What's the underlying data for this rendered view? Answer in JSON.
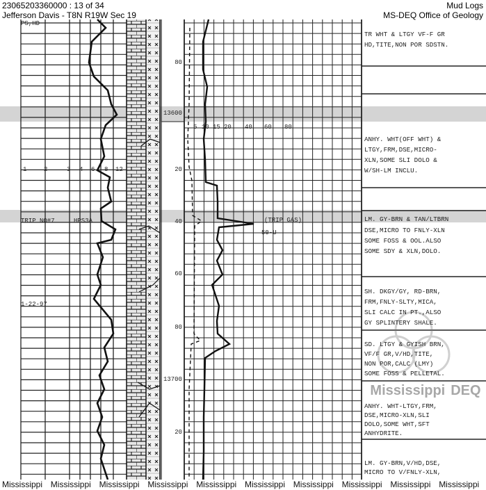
{
  "header": {
    "well_id": "23065203360000 : 13 of 34",
    "location": "Jefferson Davis - T8N R19W Sec 19",
    "doc_type": "Mud Logs",
    "agency": "MS-DEQ Office of Geology"
  },
  "left_track": {
    "top_label": "PS,HD",
    "scale_labels": [
      "1",
      "2",
      "3",
      "4",
      "6",
      "8",
      "12"
    ],
    "trip_label": "TRIP NO#7",
    "bit_label": "HPS3A",
    "date_label": "1-22-97"
  },
  "depth_labels": [
    "80",
    "13600",
    "20",
    "40",
    "60",
    "80",
    "13700",
    "20"
  ],
  "gas_track": {
    "scale_labels": [
      "5",
      "10",
      "15",
      "20",
      "40",
      "60",
      "80"
    ],
    "trip_gas_label": "(TRIP GAS)",
    "units_label": "50-U"
  },
  "descriptions": [
    "TR WHT & LTGY VF-F GR\nHD,TITE,NON POR SDSTN.",
    "ANHY. WHT(OFF WHT) &\nLTGY,FRM,DSE,MICRO-\nXLN,SOME SLI DOLO &\nW/SH-LM INCLU.",
    "LM. GY-BRN & TAN/LTBRN",
    "DSE,MICRO TO FNLY-XLN\nSOME FOSS & OOL.ALSO\nSOME SDY & XLN,DOLO.",
    "SH. DKGY/GY, RD-BRN,\nFRM,FNLY-SLTY,MICA,\nSLI CALC IN PT.,ALSO\nGY SPLINTERY SHALE.",
    "SD. LTGY & GYISH BRN,\nVF/F GR,V/HD,TITE,\nNON POR,CALC (LMY)\nSOME FOSS & PELLETAL.",
    "ANHY. WHT-LTGY,FRM,\nDSE,MICRO-XLN,SLI\nDOLO,SOME WHT,SFT\nANHYDRITE.",
    "LM. GY-BRN,V/HD,DSE,\nMICRO TO V/FNLY-XLN,"
  ],
  "watermark": {
    "line1": "Mississippi",
    "line2": "DEQ"
  },
  "footer": {
    "repeat_text": "Mississippi",
    "count": 10
  }
}
